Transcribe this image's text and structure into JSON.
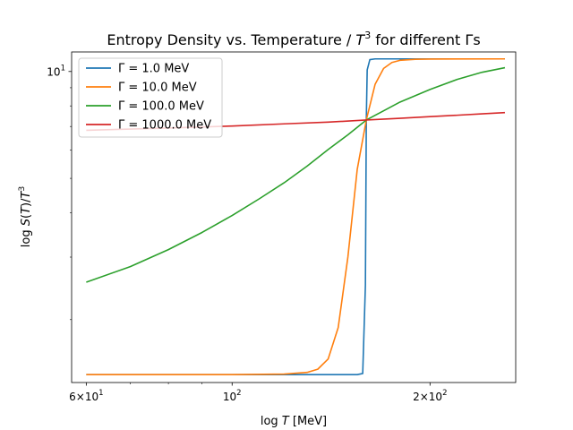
{
  "chart_data": {
    "type": "line",
    "title": {
      "prefix": "Entropy Density vs. Temperature / ",
      "var": "T",
      "sup": "3",
      "suffix": " for different Γs"
    },
    "xlabel": {
      "fn": "log ",
      "var": "T",
      "unit": " [MeV]"
    },
    "ylabel": {
      "fn": "log ",
      "s": "S",
      "open": "(",
      "t1": "T",
      "close": ")/",
      "t2": "T",
      "sup": "3"
    },
    "x_scale": "log",
    "y_scale": "log",
    "xlim": [
      57,
      270
    ],
    "ylim": [
      1.33,
      11.35
    ],
    "x_ticks": [
      {
        "value": 60,
        "mant": "6×10",
        "exp": "1"
      },
      {
        "value": 100,
        "mant": "10",
        "exp": "2"
      },
      {
        "value": 200,
        "mant": "2×10",
        "exp": "2"
      }
    ],
    "y_ticks": [
      {
        "value": 10,
        "mant": "10",
        "exp": "1"
      }
    ],
    "legend_position": "upper-left",
    "series": [
      {
        "name": "Γ = 1.0 MeV",
        "color": "#1f77b4",
        "x": [
          60,
          100,
          140,
          155,
          158,
          159.5,
          160,
          160.5,
          162,
          165,
          170,
          200,
          260
        ],
        "y": [
          1.4,
          1.4,
          1.4,
          1.4,
          1.41,
          2.5,
          7.3,
          10.1,
          10.8,
          10.85,
          10.85,
          10.85,
          10.85
        ]
      },
      {
        "name": "Γ = 10.0 MeV",
        "color": "#ff7f0e",
        "x": [
          60,
          100,
          120,
          130,
          135,
          140,
          145,
          150,
          155,
          160,
          165,
          170,
          175,
          180,
          190,
          200,
          260
        ],
        "y": [
          1.4,
          1.4,
          1.405,
          1.42,
          1.45,
          1.55,
          1.9,
          3.0,
          5.3,
          7.3,
          9.2,
          10.2,
          10.6,
          10.75,
          10.82,
          10.84,
          10.85
        ]
      },
      {
        "name": "Γ = 100.0 MeV",
        "color": "#2ca02c",
        "x": [
          60,
          70,
          80,
          90,
          100,
          110,
          120,
          130,
          140,
          150,
          160,
          170,
          180,
          200,
          220,
          240,
          260
        ],
        "y": [
          2.55,
          2.82,
          3.15,
          3.52,
          3.93,
          4.38,
          4.86,
          5.41,
          6.03,
          6.63,
          7.3,
          7.75,
          8.2,
          8.9,
          9.5,
          9.95,
          10.25
        ]
      },
      {
        "name": "Γ = 1000.0 MeV",
        "color": "#d62728",
        "x": [
          60,
          80,
          100,
          120,
          140,
          160,
          180,
          200,
          220,
          240,
          260
        ],
        "y": [
          6.83,
          6.93,
          7.02,
          7.12,
          7.2,
          7.3,
          7.38,
          7.46,
          7.53,
          7.6,
          7.66
        ]
      }
    ]
  }
}
